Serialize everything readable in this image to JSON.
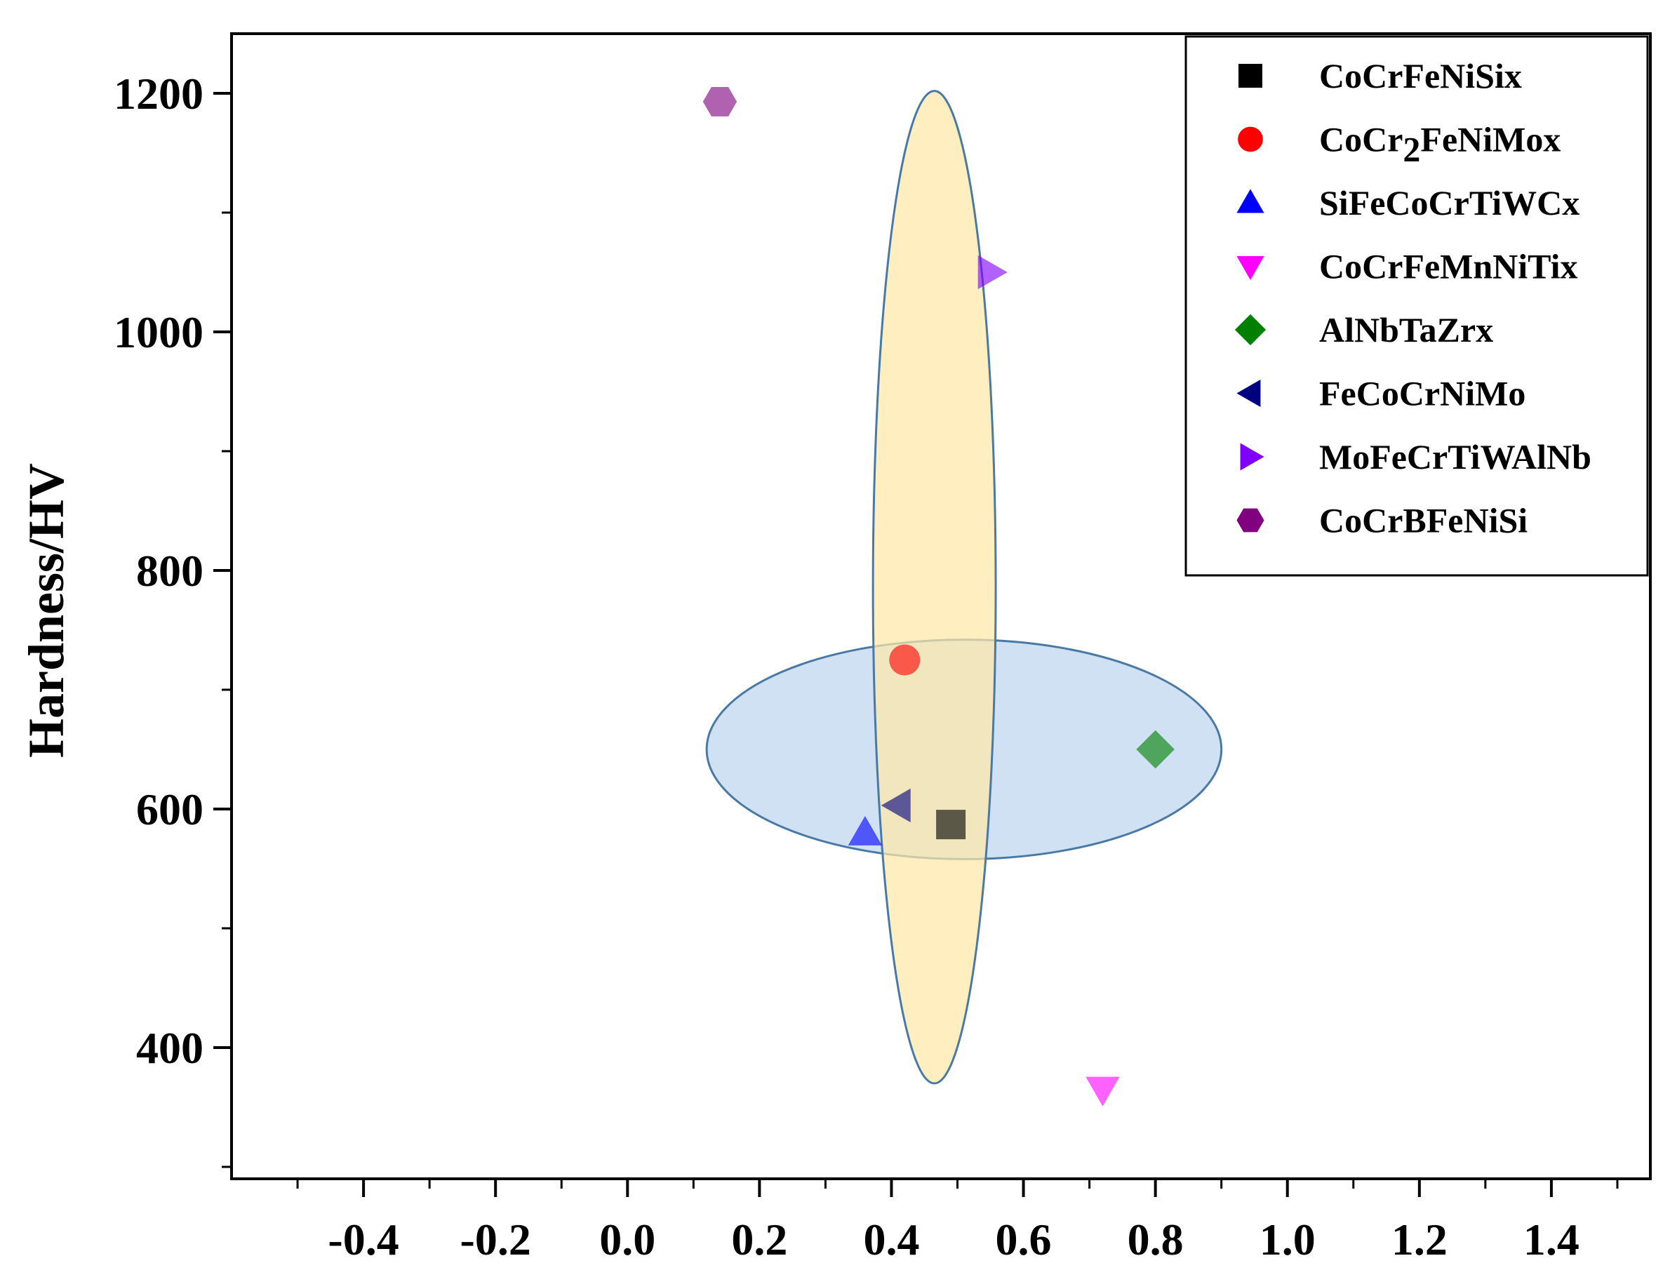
{
  "chart_data": {
    "type": "scatter",
    "title": "",
    "xlabel": "",
    "ylabel": "Hardness/HV",
    "xlim": [
      -0.6,
      1.55
    ],
    "ylim": [
      290,
      1250
    ],
    "x_ticks": [
      -0.4,
      -0.2,
      0.0,
      0.2,
      0.4,
      0.6,
      0.8,
      1.0,
      1.2,
      1.4
    ],
    "x_tick_labels": [
      "-0.4",
      "-0.2",
      "0.0",
      "0.2",
      "0.4",
      "0.6",
      "0.8",
      "1.0",
      "1.2",
      "1.4"
    ],
    "y_ticks": [
      400,
      600,
      800,
      1000,
      1200
    ],
    "y_tick_labels": [
      "400",
      "600",
      "800",
      "1000",
      "1200"
    ],
    "grid": false,
    "legend_position": "top-right",
    "series": [
      {
        "name": "CoCrFeNiSix",
        "name_main": "CoCrFeNiSix",
        "marker": "square",
        "color": "#000000",
        "points": [
          [
            0.49,
            587
          ]
        ]
      },
      {
        "name": "CoCr2FeNiMox",
        "name_main": "CoCr",
        "name_sub": "2",
        "name_rest": "FeNiMox",
        "marker": "circle",
        "color": "#ff0000",
        "points": [
          [
            0.42,
            725
          ]
        ]
      },
      {
        "name": "SiFeCoCrTiWCx",
        "name_main": "SiFeCoCrTiWCx",
        "marker": "triangle-up",
        "color": "#0000ff",
        "points": [
          [
            0.36,
            580
          ]
        ]
      },
      {
        "name": "CoCrFeMnNiTix",
        "name_main": "CoCrFeMnNiTix",
        "marker": "triangle-down",
        "color": "#ff00ff",
        "points": [
          [
            0.72,
            365
          ]
        ]
      },
      {
        "name": "AlNbTaZrx",
        "name_main": "AlNbTaZrx",
        "marker": "diamond",
        "color": "#008000",
        "points": [
          [
            0.8,
            650
          ]
        ]
      },
      {
        "name": "FeCoCrNiMo",
        "name_main": "FeCoCrNiMo",
        "marker": "triangle-left",
        "color": "#000080",
        "points": [
          [
            0.41,
            603
          ]
        ]
      },
      {
        "name": "MoFeCrTiWAlNb",
        "name_main": "MoFeCrTiWAlNb",
        "marker": "triangle-right",
        "color": "#8000ff",
        "points": [
          [
            0.55,
            1050
          ]
        ]
      },
      {
        "name": "CoCrBFeNiSi",
        "name_main": "CoCrBFeNiSi",
        "marker": "hexagon",
        "color": "#800080",
        "points": [
          [
            0.14,
            1193
          ]
        ]
      }
    ],
    "regions": [
      {
        "name": "horizontal-ellipse",
        "center": [
          0.51,
          650
        ],
        "radii": [
          0.39,
          92
        ],
        "fill": "#bcd6ee",
        "stroke": "#4a79a5"
      },
      {
        "name": "vertical-ellipse",
        "center": [
          0.465,
          786
        ],
        "radii": [
          0.093,
          416
        ],
        "fill": "#fde7a8",
        "stroke": "#4a79a5"
      }
    ]
  }
}
